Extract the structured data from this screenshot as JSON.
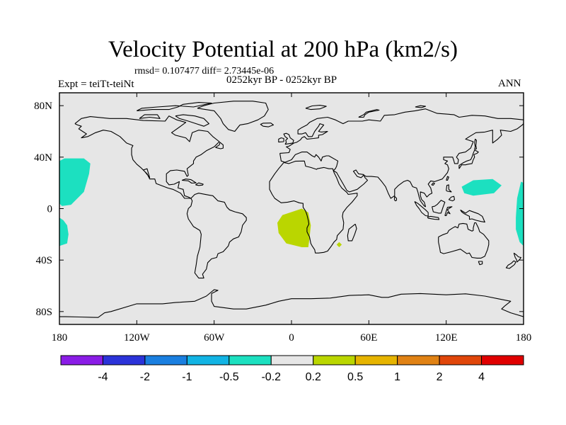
{
  "title": "Velocity Potential at 200 hPa (km2/s)",
  "stats": "rmsd= 0.107477 diff= 2.73445e-06",
  "experiment": "Expt = teiTt-teiNt",
  "period": "0252kyr BP - 0252kyr BP",
  "season": "ANN",
  "colors": {
    "ocean": "#e6e6e6",
    "coast": "#000000",
    "neg": "#1ce0c0",
    "pos": "#bad600"
  },
  "chart_data": {
    "type": "heatmap",
    "projection": "cylindrical equidistant",
    "xlim": [
      -180,
      180
    ],
    "ylim": [
      -90,
      90
    ],
    "x_ticks": [
      {
        "value": -180,
        "label": "180"
      },
      {
        "value": -120,
        "label": "120W"
      },
      {
        "value": -60,
        "label": "60W"
      },
      {
        "value": 0,
        "label": "0"
      },
      {
        "value": 60,
        "label": "60E"
      },
      {
        "value": 120,
        "label": "120E"
      },
      {
        "value": 180,
        "label": "180"
      }
    ],
    "y_ticks": [
      {
        "value": 80,
        "label": "80N"
      },
      {
        "value": 40,
        "label": "40N"
      },
      {
        "value": 0,
        "label": "0"
      },
      {
        "value": -40,
        "label": "40S"
      },
      {
        "value": -80,
        "label": "80S"
      }
    ],
    "colorbar": {
      "labels": [
        "-4",
        "-2",
        "-1",
        "-0.5",
        "-0.2",
        "0.2",
        "0.5",
        "1",
        "2",
        "4"
      ],
      "colors": [
        "#8a1ce6",
        "#2b33d9",
        "#1a7fe0",
        "#12b4e4",
        "#1ce0c0",
        "#e6e6e6",
        "#bad600",
        "#e6b400",
        "#e08214",
        "#e0460a",
        "#e00000"
      ]
    },
    "anomaly_regions": [
      {
        "name": "central-north-pacific-negative",
        "sign": "negative",
        "level": "-0.5 to -0.2",
        "polygon": [
          [
            -176,
            39
          ],
          [
            -161,
            39
          ],
          [
            -156,
            35
          ],
          [
            -157,
            27
          ],
          [
            -161,
            13
          ],
          [
            -171,
            3
          ],
          [
            -178,
            2
          ],
          [
            -180,
            4
          ],
          [
            -180,
            37
          ]
        ]
      },
      {
        "name": "date-line-south-negative",
        "sign": "negative",
        "level": "-0.5 to -0.2",
        "polygon": [
          [
            -180,
            -7
          ],
          [
            -177,
            -9
          ],
          [
            -174,
            -13
          ],
          [
            -173,
            -20
          ],
          [
            -174,
            -27
          ],
          [
            -180,
            -29
          ]
        ]
      },
      {
        "name": "west-pacific-negative",
        "sign": "negative",
        "level": "-0.5 to -0.2",
        "polygon": [
          [
            178,
            21
          ],
          [
            180,
            20
          ],
          [
            180,
            -29
          ],
          [
            177,
            -26
          ],
          [
            174,
            -16
          ],
          [
            174,
            -7
          ],
          [
            175,
            8
          ]
        ]
      },
      {
        "name": "east-asia-negative",
        "sign": "negative",
        "level": "-0.5 to -0.2",
        "polygon": [
          [
            132,
            17
          ],
          [
            141,
            22
          ],
          [
            156,
            23
          ],
          [
            163,
            18
          ],
          [
            157,
            12
          ],
          [
            141,
            10
          ],
          [
            134,
            12
          ]
        ]
      },
      {
        "name": "southeast-atlantic-positive",
        "sign": "positive",
        "level": "0.2 to 0.5",
        "polygon": [
          [
            -1,
            -3
          ],
          [
            8,
            0
          ],
          [
            13,
            -3
          ],
          [
            15,
            -13
          ],
          [
            14,
            -23
          ],
          [
            13,
            -30
          ],
          [
            8,
            -30
          ],
          [
            -4,
            -27
          ],
          [
            -10,
            -19
          ],
          [
            -11,
            -11
          ],
          [
            -7,
            -5
          ]
        ]
      },
      {
        "name": "madagascar-positive",
        "sign": "positive",
        "level": "0.2 to 0.5",
        "polygon": [
          [
            37,
            -26
          ],
          [
            39,
            -28
          ],
          [
            37,
            -30
          ],
          [
            35,
            -28
          ]
        ]
      }
    ]
  }
}
